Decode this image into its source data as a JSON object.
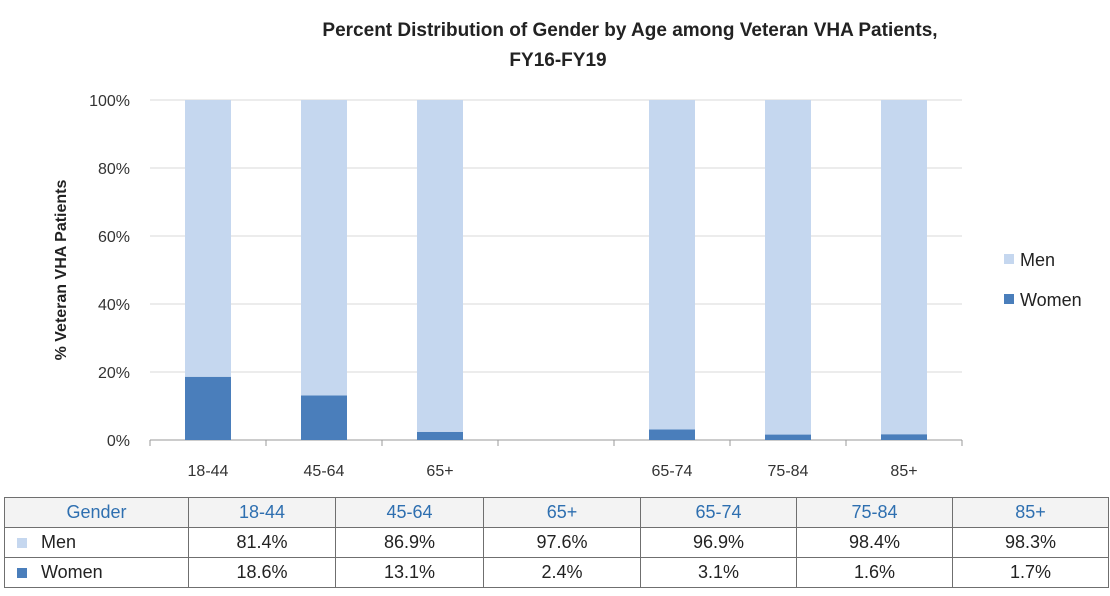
{
  "chart_data": {
    "type": "bar",
    "stacked": true,
    "percent": true,
    "title": "Percent Distribution of Gender by Age among Veteran VHA Patients, FY16-FY19",
    "title_lines": [
      "Percent Distribution of Gender by Age among Veteran VHA Patients,",
      "FY16-FY19"
    ],
    "ylabel": "% Veteran VHA Patients",
    "xlabel": "",
    "ylim": [
      0,
      100
    ],
    "yticks": [
      "0%",
      "20%",
      "40%",
      "60%",
      "80%",
      "100%"
    ],
    "categories": [
      "18-44",
      "45-64",
      "65+",
      "",
      "65-74",
      "75-84",
      "85+"
    ],
    "series": [
      {
        "name": "Women",
        "values": [
          18.6,
          13.1,
          2.4,
          null,
          3.1,
          1.6,
          1.7
        ],
        "color": "#4a7ebb"
      },
      {
        "name": "Men",
        "values": [
          81.4,
          86.9,
          97.6,
          null,
          96.9,
          98.4,
          98.3
        ],
        "color": "#c5d7ef"
      }
    ],
    "legend": {
      "position": "right",
      "entries": [
        "Men",
        "Women"
      ]
    },
    "grid": true
  },
  "table": {
    "header": [
      "Gender",
      "18-44",
      "45-64",
      "65+",
      "65-74",
      "75-84",
      "85+"
    ],
    "rows": [
      {
        "label": "Men",
        "color": "#c5d7ef",
        "cells": [
          "81.4%",
          "86.9%",
          "97.6%",
          "96.9%",
          "98.4%",
          "98.3%"
        ]
      },
      {
        "label": "Women",
        "color": "#4a7ebb",
        "cells": [
          "18.6%",
          "13.1%",
          "2.4%",
          "3.1%",
          "1.6%",
          "1.7%"
        ]
      }
    ]
  }
}
